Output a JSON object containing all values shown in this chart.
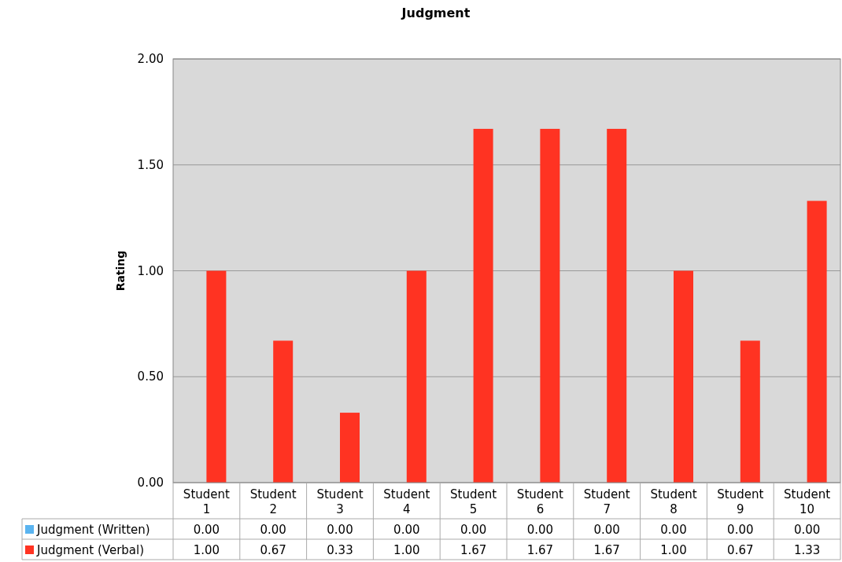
{
  "chart_data": {
    "type": "bar",
    "title": "Judgment",
    "ylabel": "Rating",
    "categories": [
      "Student\n1",
      "Student\n2",
      "Student\n3",
      "Student\n4",
      "Student\n5",
      "Student\n6",
      "Student\n7",
      "Student\n8",
      "Student\n9",
      "Student\n10"
    ],
    "series": [
      {
        "name": "Judgment (Written)",
        "color": "#5ab4f0",
        "values": [
          0,
          0,
          0,
          0,
          0,
          0,
          0,
          0,
          0,
          0
        ],
        "value_labels": [
          "0.00",
          "0.00",
          "0.00",
          "0.00",
          "0.00",
          "0.00",
          "0.00",
          "0.00",
          "0.00",
          "0.00"
        ]
      },
      {
        "name": "Judgment (Verbal)",
        "color": "#ff3322",
        "values": [
          1,
          0.67,
          0.33,
          1,
          1.67,
          1.67,
          1.67,
          1,
          0.67,
          1.33
        ],
        "value_labels": [
          "1.00",
          "0.67",
          "0.33",
          "1.00",
          "1.67",
          "1.67",
          "1.67",
          "1.00",
          "0.67",
          "1.33"
        ]
      }
    ],
    "ylim": [
      0,
      2
    ],
    "yticks": [
      {
        "value": 0,
        "label": "0.00"
      },
      {
        "value": 0.5,
        "label": "0.50"
      },
      {
        "value": 1,
        "label": "1.00"
      },
      {
        "value": 1.5,
        "label": "1.50"
      },
      {
        "value": 2,
        "label": "2.00"
      }
    ],
    "grid": "y",
    "legend": "bottom"
  }
}
